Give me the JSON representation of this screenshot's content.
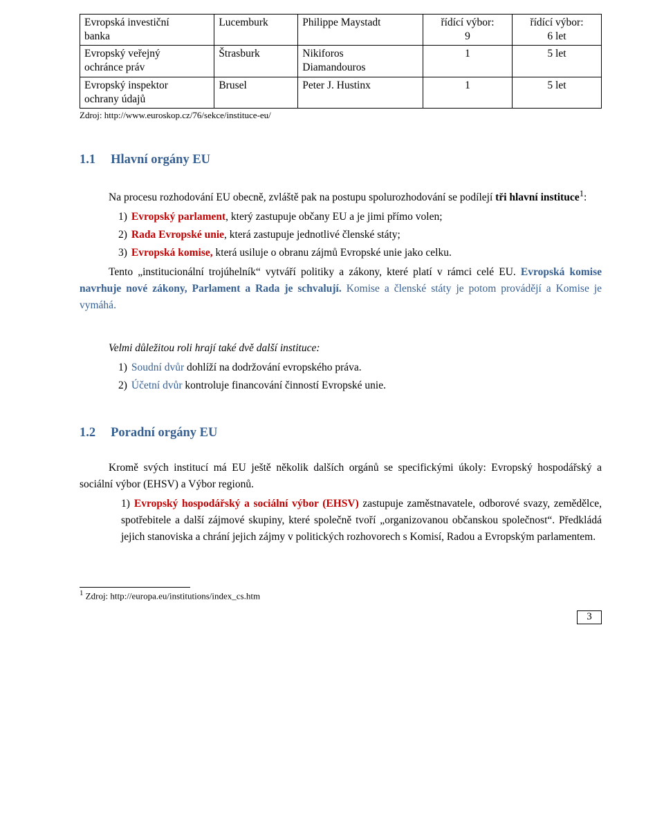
{
  "table": {
    "rows": [
      {
        "org": "Evropská investiční\nbanka",
        "seat": "Lucemburk",
        "head": "Philippe Maystadt",
        "col5": "řídící výbor:\n9",
        "col6": "řídící výbor:\n6 let"
      },
      {
        "org": "Evropský veřejný\nochránce práv",
        "seat": "Štrasburk",
        "head": "Nikiforos\nDiamandouros",
        "col5": "1",
        "col6": "5 let"
      },
      {
        "org": "Evropský inspektor\nochrany údajů",
        "seat": "Brusel",
        "head": "Peter J. Hustinx",
        "col5": "1",
        "col6": "5 let"
      }
    ],
    "source": "Zdroj: http://www.euroskop.cz/76/sekce/instituce-eu/"
  },
  "sec11": {
    "num": "1.1",
    "title": "Hlavní orgány EU",
    "p1a": "Na procesu rozhodování EU obecně, zvláště pak na postupu spolurozhodování se podílejí ",
    "p1b": "tři hlavní instituce",
    "p1c": ":",
    "fnmark": "1",
    "items": [
      {
        "mk": "1)",
        "red": "Evropský parlament",
        "rest": ", který zastupuje občany EU a je jimi přímo volen;"
      },
      {
        "mk": "2)",
        "red": "Rada Evropské unie",
        "rest": ", která zastupuje jednotlivé členské státy;"
      },
      {
        "mk": "3)",
        "red": "Evropská komise,",
        "rest": " která usiluje o obranu zájmů Evropské unie jako celku."
      }
    ],
    "p2a": "Tento „institucionální trojúhelník“ vytváří politiky a zákony, které platí v rámci celé EU. ",
    "p2b": "Evropská komise navrhuje nové zákony, Parlament a Rada je schvalují. ",
    "p2c": "Komise a členské státy je potom provádějí a Komise je vymáhá.",
    "p3": "Velmi důležitou roli hrají také dvě další instituce:",
    "items2": [
      {
        "mk": "1)",
        "blue": "Soudní dvůr",
        "rest": " dohlíží na dodržování evropského práva."
      },
      {
        "mk": "2)",
        "blue": "Účetní dvůr",
        "rest": " kontroluje financování činností Evropské unie."
      }
    ]
  },
  "sec12": {
    "num": "1.2",
    "title": "Poradní orgány EU",
    "p1": "Kromě svých institucí má EU ještě několik dalších orgánů se specifickými úkoly: Evropský hospodářský a sociální výbor (EHSV) a Výbor regionů.",
    "item1_mk": "1)",
    "item1_red": "Evropský hospodářský a sociální výbor (EHSV)",
    "item1_rest": " zastupuje zaměstnavatele, odborové svazy, zemědělce, spotřebitele a další zájmové skupiny, které společně tvoří „organizovanou občanskou společnost“. Předkládá jejich stanoviska a chrání jejich zájmy v politických rozhovorech s Komisí, Radou a Evropským parlamentem."
  },
  "footnote": {
    "mark": "1",
    "text": " Zdroj: http://europa.eu/institutions/index_cs.htm"
  },
  "pagenum": "3"
}
